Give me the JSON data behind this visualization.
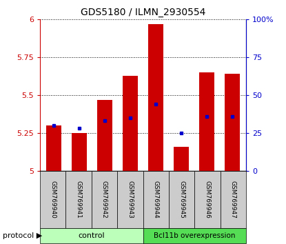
{
  "title": "GDS5180 / ILMN_2930554",
  "samples": [
    "GSM769940",
    "GSM769941",
    "GSM769942",
    "GSM769943",
    "GSM769944",
    "GSM769945",
    "GSM769946",
    "GSM769947"
  ],
  "red_values": [
    5.3,
    5.25,
    5.47,
    5.63,
    5.97,
    5.16,
    5.65,
    5.64
  ],
  "blue_values": [
    5.3,
    5.28,
    5.33,
    5.35,
    5.44,
    5.25,
    5.36,
    5.36
  ],
  "ylim": [
    5.0,
    6.0
  ],
  "yticks": [
    5.0,
    5.25,
    5.5,
    5.75,
    6.0
  ],
  "ytick_labels": [
    "5",
    "5.25",
    "5.5",
    "5.75",
    "6"
  ],
  "right_yticks": [
    0,
    25,
    50,
    75,
    100
  ],
  "right_ytick_labels": [
    "0",
    "25",
    "50",
    "75",
    "100%"
  ],
  "bar_color": "#CC0000",
  "blue_color": "#0000CC",
  "control_label": "control",
  "overexp_label": "Bcl11b overexpression",
  "control_color": "#BBFFBB",
  "overexp_color": "#55DD55",
  "protocol_label": "protocol",
  "bg_color": "#CCCCCC",
  "bar_width": 0.6
}
